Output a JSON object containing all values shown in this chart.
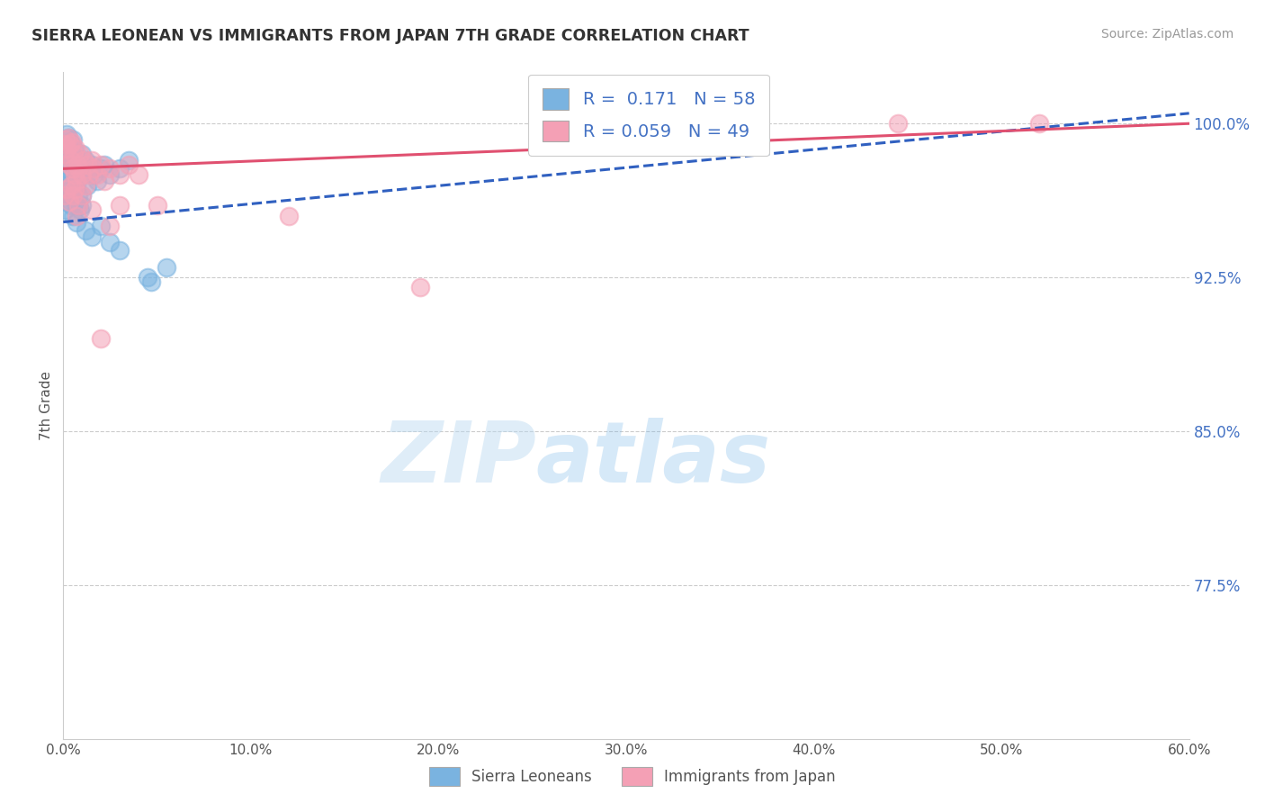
{
  "title": "SIERRA LEONEAN VS IMMIGRANTS FROM JAPAN 7TH GRADE CORRELATION CHART",
  "source": "Source: ZipAtlas.com",
  "ylabel": "7th Grade",
  "xlim": [
    0.0,
    60.0
  ],
  "ylim": [
    70.0,
    102.5
  ],
  "yticks": [
    77.5,
    85.0,
    92.5,
    100.0
  ],
  "xticks": [
    0.0,
    10.0,
    20.0,
    30.0,
    40.0,
    50.0,
    60.0
  ],
  "blue_R": 0.171,
  "blue_N": 58,
  "pink_R": 0.059,
  "pink_N": 49,
  "blue_color": "#7ab3e0",
  "pink_color": "#f4a0b5",
  "blue_line_color": "#3060c0",
  "pink_line_color": "#e05070",
  "watermark_zip": "ZIP",
  "watermark_atlas": "atlas",
  "legend_label_blue": "Sierra Leoneans",
  "legend_label_pink": "Immigrants from Japan",
  "blue_trend_x0": 0.0,
  "blue_trend_y0": 95.2,
  "blue_trend_x1": 60.0,
  "blue_trend_y1": 100.5,
  "pink_trend_x0": 0.0,
  "pink_trend_y0": 97.8,
  "pink_trend_x1": 60.0,
  "pink_trend_y1": 100.0,
  "blue_scatter_x": [
    0.05,
    0.1,
    0.1,
    0.15,
    0.15,
    0.2,
    0.2,
    0.25,
    0.25,
    0.3,
    0.3,
    0.35,
    0.35,
    0.4,
    0.4,
    0.45,
    0.45,
    0.5,
    0.5,
    0.6,
    0.6,
    0.7,
    0.7,
    0.8,
    0.8,
    0.9,
    1.0,
    1.0,
    1.1,
    1.2,
    1.3,
    1.4,
    1.5,
    1.6,
    1.8,
    2.0,
    2.2,
    2.5,
    3.0,
    3.5,
    0.1,
    0.2,
    0.3,
    0.4,
    0.5,
    0.6,
    0.7,
    0.8,
    0.9,
    1.0,
    1.2,
    1.5,
    2.0,
    2.5,
    3.0,
    4.5,
    4.7,
    5.5
  ],
  "blue_scatter_y": [
    98.5,
    99.0,
    97.5,
    99.2,
    98.0,
    99.5,
    97.8,
    99.3,
    98.2,
    99.1,
    97.0,
    98.8,
    96.5,
    99.0,
    97.2,
    98.5,
    96.8,
    99.2,
    97.5,
    98.7,
    96.2,
    98.3,
    97.0,
    98.0,
    96.5,
    97.8,
    98.5,
    96.0,
    97.5,
    98.2,
    97.0,
    97.8,
    98.0,
    97.5,
    97.2,
    97.8,
    98.0,
    97.5,
    97.8,
    98.2,
    95.8,
    96.2,
    96.5,
    96.0,
    95.5,
    96.8,
    95.2,
    96.0,
    95.8,
    96.5,
    94.8,
    94.5,
    95.0,
    94.2,
    93.8,
    92.5,
    92.3,
    93.0
  ],
  "pink_scatter_x": [
    0.05,
    0.1,
    0.15,
    0.2,
    0.25,
    0.3,
    0.35,
    0.4,
    0.45,
    0.5,
    0.55,
    0.6,
    0.65,
    0.7,
    0.75,
    0.8,
    0.9,
    1.0,
    1.1,
    1.2,
    1.3,
    1.4,
    1.5,
    1.6,
    1.8,
    2.0,
    2.2,
    2.5,
    3.0,
    3.5,
    0.1,
    0.2,
    0.3,
    0.4,
    0.5,
    0.6,
    0.7,
    0.8,
    1.0,
    1.5,
    2.0,
    2.5,
    3.0,
    4.0,
    5.0,
    12.0,
    19.0,
    44.5,
    52.0
  ],
  "pink_scatter_y": [
    99.0,
    98.5,
    99.2,
    98.8,
    99.3,
    98.0,
    99.0,
    98.2,
    99.1,
    97.8,
    98.5,
    97.5,
    98.8,
    97.2,
    98.0,
    97.8,
    98.5,
    97.5,
    98.2,
    97.0,
    98.0,
    97.5,
    98.2,
    97.8,
    97.5,
    98.0,
    97.2,
    97.8,
    97.5,
    98.0,
    96.5,
    96.8,
    96.2,
    97.0,
    96.5,
    96.8,
    95.5,
    96.0,
    96.5,
    95.8,
    89.5,
    95.0,
    96.0,
    97.5,
    96.0,
    95.5,
    92.0,
    100.0,
    100.0
  ]
}
